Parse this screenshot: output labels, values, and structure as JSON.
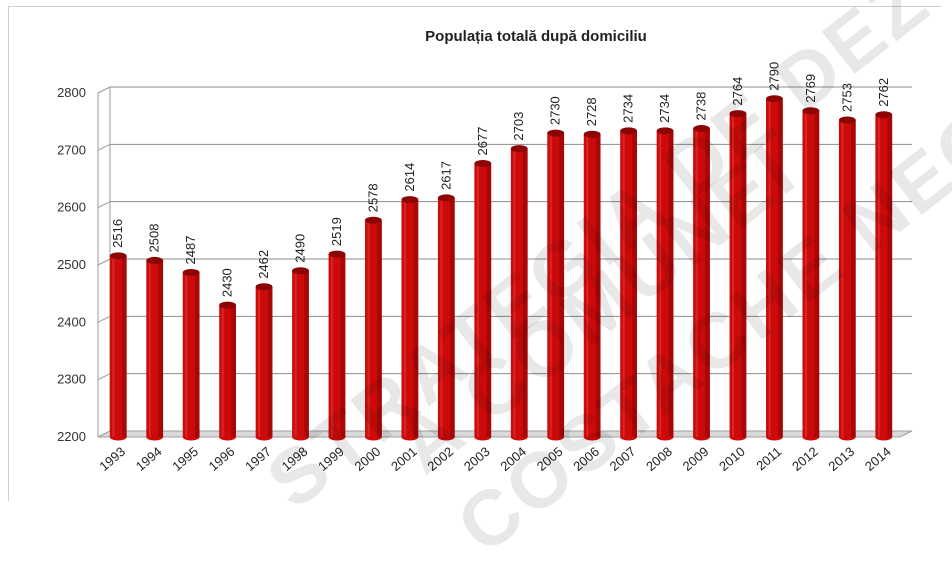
{
  "chart_data": {
    "type": "bar",
    "title": "Populația totală după domiciliu",
    "categories": [
      "1993",
      "1994",
      "1995",
      "1996",
      "1997",
      "1998",
      "1999",
      "2000",
      "2001",
      "2002",
      "2003",
      "2004",
      "2005",
      "2006",
      "2007",
      "2008",
      "2009",
      "2010",
      "2011",
      "2012",
      "2013",
      "2014"
    ],
    "values": [
      2516,
      2508,
      2487,
      2430,
      2462,
      2490,
      2519,
      2578,
      2614,
      2617,
      2677,
      2703,
      2730,
      2728,
      2734,
      2734,
      2738,
      2764,
      2790,
      2769,
      2753,
      2762
    ],
    "ylim": [
      2200,
      2800
    ],
    "yticks": [
      2200,
      2300,
      2400,
      2500,
      2600,
      2700,
      2800
    ],
    "grid": true,
    "bar_color": "#cc0a0a",
    "bar_dark": "#8d0404",
    "bar_light": "#e64a4a"
  },
  "watermark": {
    "line1": "STRATEGIA DE DEZVOLTARE",
    "line2": "A COMUNEI",
    "line3": "COSTACHE NEGRI"
  }
}
